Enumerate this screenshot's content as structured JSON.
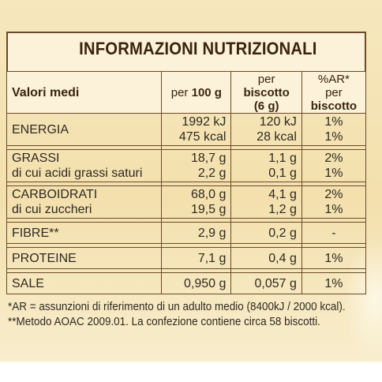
{
  "title": "INFORMAZIONI NUTRIZIONALI",
  "header": {
    "col1": "Valori medi",
    "col2_prefix": "per",
    "col2_bold": "100 g",
    "col3_prefix": "per",
    "col3_bold": "biscotto",
    "col3_line2": "(6 g)",
    "col4_line1": "%AR*",
    "col4_prefix": "per",
    "col4_bold": "biscotto"
  },
  "rows": [
    {
      "name": "ENERGIA",
      "sub": "",
      "per100": "1992 kJ",
      "per100_2": "475 kcal",
      "perb": "120 kJ",
      "perb_2": "28 kcal",
      "ar": "1%",
      "ar_2": "1%"
    },
    {
      "name": "GRASSI",
      "sub": "di cui acidi grassi saturi",
      "per100": "18,7 g",
      "per100_2": "2,2 g",
      "perb": "1,1 g",
      "perb_2": "0,1 g",
      "ar": "2%",
      "ar_2": "1%"
    },
    {
      "name": "CARBOIDRATI",
      "sub": "di cui zuccheri",
      "per100": "68,0 g",
      "per100_2": "19,5 g",
      "perb": "4,1 g",
      "perb_2": "1,2 g",
      "ar": "2%",
      "ar_2": "1%"
    },
    {
      "name": "FIBRE**",
      "per100": "2,9 g",
      "perb": "0,2 g",
      "ar": "-"
    },
    {
      "name": "PROTEINE",
      "per100": "7,1 g",
      "perb": "0,4 g",
      "ar": "1%"
    },
    {
      "name": "SALE",
      "per100": "0,950 g",
      "perb": "0,057 g",
      "ar": "1%"
    }
  ],
  "footnotes": [
    "*AR = assunzioni di riferimento di un adulto medio (8400kJ / 2000 kcal).",
    "**Metodo AOAC 2009.01. La confezione contiene circa 58 biscotti."
  ]
}
